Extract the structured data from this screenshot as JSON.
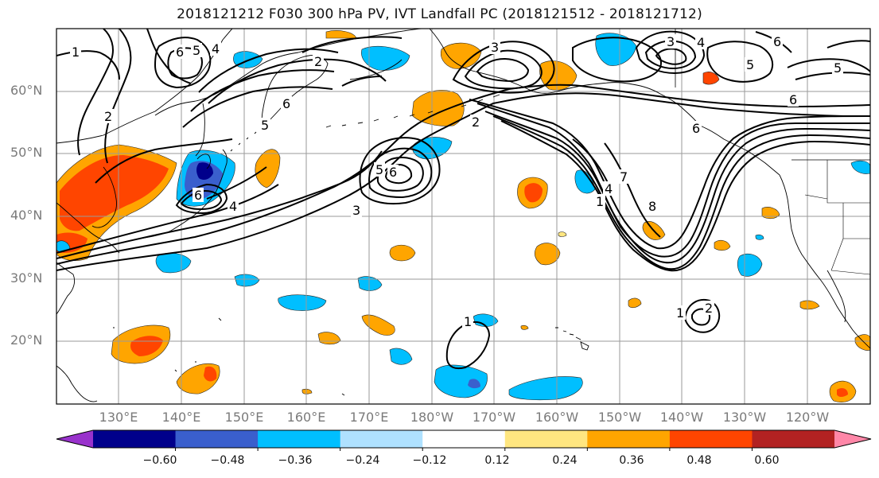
{
  "title": "2018121212 F030 300 hPa PV, IVT Landfall PC (2018121512 - 2018121712)",
  "map": {
    "projection": "equirectangular",
    "lon_range": [
      "122°E",
      "121°W"
    ],
    "lat_range": [
      10,
      70
    ],
    "grid": true,
    "land_background": "#ffffff",
    "coastline_color": "#000000"
  },
  "axes": {
    "lat_labels": [
      "60°N",
      "50°N",
      "40°N",
      "30°N",
      "20°N"
    ],
    "lon_labels": [
      "130°E",
      "140°E",
      "150°E",
      "160°E",
      "170°E",
      "180°W",
      "170°W",
      "160°W",
      "150°W",
      "140°W",
      "130°W",
      "120°W"
    ]
  },
  "contours": {
    "variable": "300 hPa PV",
    "labels": [
      "1",
      "2",
      "3",
      "4",
      "5",
      "6",
      "7",
      "8"
    ]
  },
  "shading": {
    "variable": "IVT Landfall PC"
  },
  "colorbar": {
    "tick_labels": [
      "−0.60",
      "−0.48",
      "−0.36",
      "−0.24",
      "−0.12",
      "0.12",
      "0.24",
      "0.36",
      "0.48",
      "0.60"
    ],
    "colors": [
      "#9932cc",
      "#00008b",
      "#3a5fcd",
      "#00bfff",
      "#afe1ff",
      "#ffffff",
      "#ffe680",
      "#ffa500",
      "#ff4500",
      "#b22222",
      "#ff87a8"
    ],
    "extend": "both"
  }
}
